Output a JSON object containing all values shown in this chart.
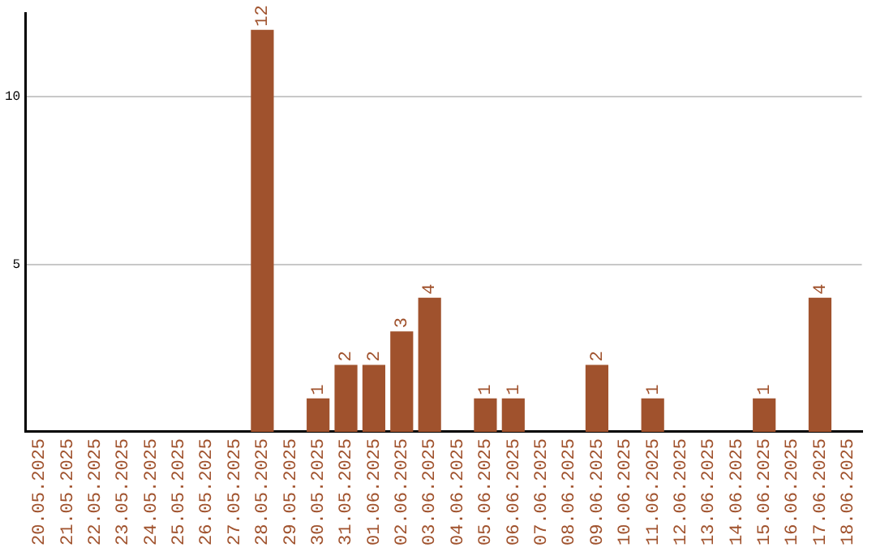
{
  "chart_data": {
    "type": "bar",
    "categories": [
      "20.05.2025",
      "21.05.2025",
      "22.05.2025",
      "23.05.2025",
      "24.05.2025",
      "25.05.2025",
      "26.05.2025",
      "27.05.2025",
      "28.05.2025",
      "29.05.2025",
      "30.05.2025",
      "31.05.2025",
      "01.06.2025",
      "02.06.2025",
      "03.06.2025",
      "04.06.2025",
      "05.06.2025",
      "06.06.2025",
      "07.06.2025",
      "08.06.2025",
      "09.06.2025",
      "10.06.2025",
      "11.06.2025",
      "12.06.2025",
      "13.06.2025",
      "14.06.2025",
      "15.06.2025",
      "16.06.2025",
      "17.06.2025",
      "18.06.2025"
    ],
    "values": [
      0,
      0,
      0,
      0,
      0,
      0,
      0,
      0,
      12,
      0,
      1,
      2,
      2,
      3,
      4,
      0,
      1,
      1,
      0,
      0,
      2,
      0,
      1,
      0,
      0,
      0,
      1,
      0,
      4,
      0
    ],
    "value_labels": [
      null,
      null,
      null,
      null,
      null,
      null,
      null,
      null,
      "12",
      null,
      "1",
      "2",
      "2",
      "3",
      "4",
      null,
      "1",
      "1",
      null,
      null,
      "2",
      null,
      "1",
      null,
      null,
      null,
      "1",
      null,
      "4",
      null
    ],
    "color": "#a0522d",
    "ylim": [
      0,
      12.5
    ],
    "yticks": [
      5,
      10
    ],
    "grid": "y",
    "legend": false
  }
}
